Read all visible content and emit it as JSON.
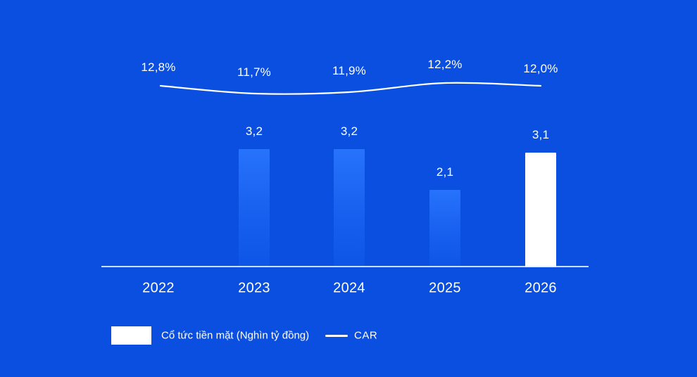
{
  "chart_data": {
    "type": "bar",
    "title": "",
    "categories": [
      "2022",
      "2023",
      "2024",
      "2025",
      "2026"
    ],
    "series": [
      {
        "name": "Cổ tức tiền mặt (Nghìn tỷ đồng)",
        "type": "bar",
        "values": [
          null,
          3.2,
          3.2,
          2.1,
          3.1
        ],
        "labels": [
          "",
          "3,2",
          "3,2",
          "2,1",
          "3,1"
        ],
        "point_colors": [
          "none",
          "blue",
          "blue",
          "blue",
          "white"
        ]
      },
      {
        "name": "CAR",
        "type": "line",
        "values": [
          12.8,
          11.7,
          11.9,
          12.2,
          12.0
        ],
        "labels": [
          "12,8%",
          "11,7%",
          "11,9%",
          "12,2%",
          "12,0%"
        ],
        "color": "#ffffff"
      }
    ],
    "xlabel": "",
    "ylabel": "",
    "grid": false,
    "legend_position": "bottom-left"
  },
  "legend": {
    "bar_swatch_color": "#ffffff",
    "bar_label": "Cổ tức tiền mặt (Nghìn tỷ đồng)",
    "line_label": "CAR"
  },
  "colors": {
    "background": "#0a4fe0",
    "bar_gradient_top": "#2773fc",
    "bar_gradient_bottom": "#0d55e6",
    "highlight_bar": "#ffffff",
    "line": "#ffffff",
    "axis": "#dfeeff",
    "text": "#ffffff"
  }
}
